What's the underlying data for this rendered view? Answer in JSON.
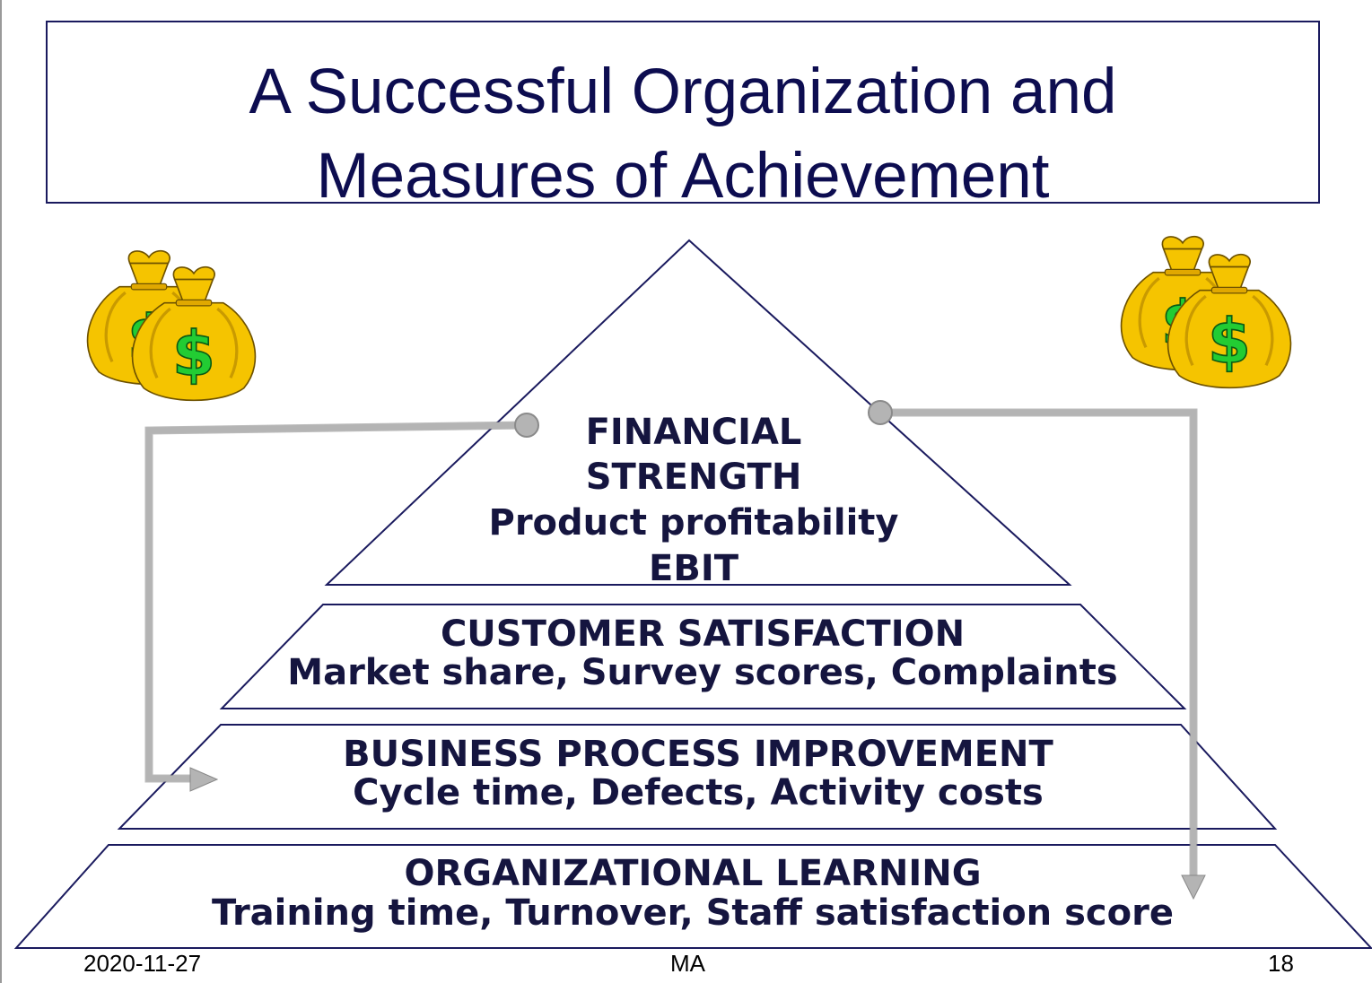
{
  "title": {
    "line1": "A Successful Organization and",
    "line2": "Measures of Achievement"
  },
  "pyramid": {
    "financial": {
      "heading1": "FINANCIAL",
      "heading2": "STRENGTH",
      "measure1": "Product profitability",
      "measure2": "EBIT"
    },
    "customer": {
      "heading": "CUSTOMER SATISFACTION",
      "measures": "Market share, Survey scores, Complaints"
    },
    "process": {
      "heading": "BUSINESS PROCESS IMPROVEMENT",
      "measures": "Cycle time, Defects, Activity costs"
    },
    "learning": {
      "heading": "ORGANIZATIONAL LEARNING",
      "measures": "Training time, Turnover, Staff satisfaction score"
    }
  },
  "icons": {
    "left": "money-bags-icon",
    "right": "money-bags-icon"
  },
  "colors": {
    "title_text": "#0d0d50",
    "outline": "#1a1a5e",
    "tier_text": "#15153f",
    "connector": "#b4b4b4",
    "bag_fill": "#f5c400",
    "dollar_fill": "#22cc33"
  },
  "footer": {
    "date": "2020-11-27",
    "center": "MA",
    "page": "18"
  }
}
